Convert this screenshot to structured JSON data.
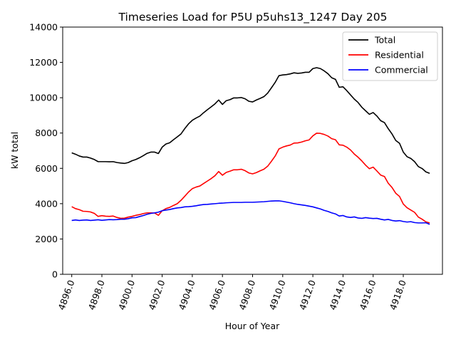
{
  "chart_data": {
    "type": "line",
    "title": "Timeseries Load for P5U p5uhs13_1247  Day 205",
    "xlabel": "Hour of Year",
    "ylabel": "kW total",
    "xlim": [
      4895.4,
      4920.6
    ],
    "ylim": [
      0,
      14000
    ],
    "xticks": [
      4896,
      4898,
      4900,
      4902,
      4904,
      4906,
      4908,
      4910,
      4912,
      4914,
      4916,
      4918
    ],
    "xtick_labels": [
      "4896.0",
      "4898.0",
      "4900.0",
      "4902.0",
      "4904.0",
      "4906.0",
      "4908.0",
      "4910.0",
      "4912.0",
      "4914.0",
      "4916.0",
      "4918.0"
    ],
    "yticks": [
      0,
      2000,
      4000,
      6000,
      8000,
      10000,
      12000,
      14000
    ],
    "ytick_labels": [
      "0",
      "2000",
      "4000",
      "6000",
      "8000",
      "10000",
      "12000",
      "14000"
    ],
    "legend_position": "top-right",
    "grid": false,
    "x": [
      4896.0,
      4896.25,
      4896.5,
      4896.75,
      4897.0,
      4897.25,
      4897.5,
      4897.75,
      4898.0,
      4898.25,
      4898.5,
      4898.75,
      4899.0,
      4899.25,
      4899.5,
      4899.75,
      4900.0,
      4900.25,
      4900.5,
      4900.75,
      4901.0,
      4901.25,
      4901.5,
      4901.75,
      4902.0,
      4902.25,
      4902.5,
      4902.75,
      4903.0,
      4903.25,
      4903.5,
      4903.75,
      4904.0,
      4904.25,
      4904.5,
      4904.75,
      4905.0,
      4905.25,
      4905.5,
      4905.75,
      4906.0,
      4906.25,
      4906.5,
      4906.75,
      4907.0,
      4907.25,
      4907.5,
      4907.75,
      4908.0,
      4908.25,
      4908.5,
      4908.75,
      4909.0,
      4909.25,
      4909.5,
      4909.75,
      4910.0,
      4910.25,
      4910.5,
      4910.75,
      4911.0,
      4911.25,
      4911.5,
      4911.75,
      4912.0,
      4912.25,
      4912.5,
      4912.75,
      4913.0,
      4913.25,
      4913.5,
      4913.75,
      4914.0,
      4914.25,
      4914.5,
      4914.75,
      4915.0,
      4915.25,
      4915.5,
      4915.75,
      4916.0,
      4916.25,
      4916.5,
      4916.75,
      4917.0,
      4917.25,
      4917.5,
      4917.75,
      4918.0,
      4918.25,
      4918.5,
      4918.75,
      4919.0,
      4919.25,
      4919.5,
      4919.75
    ],
    "series": [
      {
        "name": "Total",
        "color": "#000000",
        "values": [
          6880,
          6800,
          6700,
          6640,
          6640,
          6580,
          6500,
          6380,
          6380,
          6380,
          6370,
          6380,
          6330,
          6300,
          6280,
          6330,
          6430,
          6500,
          6600,
          6720,
          6850,
          6920,
          6920,
          6840,
          7200,
          7380,
          7450,
          7620,
          7780,
          7950,
          8250,
          8520,
          8720,
          8850,
          8960,
          9150,
          9320,
          9480,
          9650,
          9870,
          9620,
          9830,
          9890,
          9990,
          9990,
          10010,
          9940,
          9800,
          9760,
          9870,
          9960,
          10060,
          10260,
          10560,
          10870,
          11250,
          11290,
          11310,
          11350,
          11410,
          11380,
          11400,
          11440,
          11440,
          11650,
          11700,
          11650,
          11520,
          11360,
          11130,
          11040,
          10590,
          10620,
          10400,
          10160,
          9920,
          9730,
          9460,
          9260,
          9060,
          9160,
          8960,
          8700,
          8590,
          8250,
          7950,
          7580,
          7420,
          6920,
          6660,
          6560,
          6380,
          6100,
          5990,
          5800,
          5720
        ]
      },
      {
        "name": "Residential",
        "color": "#ff0000",
        "values": [
          3830,
          3720,
          3660,
          3570,
          3560,
          3530,
          3450,
          3280,
          3320,
          3290,
          3280,
          3300,
          3220,
          3170,
          3180,
          3240,
          3280,
          3340,
          3380,
          3440,
          3480,
          3480,
          3470,
          3340,
          3600,
          3720,
          3790,
          3900,
          4000,
          4190,
          4420,
          4660,
          4850,
          4940,
          5000,
          5140,
          5280,
          5420,
          5580,
          5820,
          5610,
          5770,
          5840,
          5920,
          5920,
          5950,
          5870,
          5740,
          5690,
          5760,
          5860,
          5950,
          6120,
          6400,
          6700,
          7100,
          7200,
          7270,
          7320,
          7430,
          7440,
          7490,
          7560,
          7610,
          7840,
          7990,
          7980,
          7920,
          7830,
          7680,
          7620,
          7330,
          7310,
          7200,
          7040,
          6810,
          6630,
          6420,
          6180,
          5980,
          6070,
          5850,
          5620,
          5540,
          5160,
          4920,
          4590,
          4410,
          3980,
          3770,
          3640,
          3510,
          3240,
          3120,
          2970,
          2910
        ]
      },
      {
        "name": "Commercial",
        "color": "#0000ff",
        "values": [
          3050,
          3080,
          3050,
          3070,
          3080,
          3050,
          3070,
          3090,
          3060,
          3080,
          3100,
          3090,
          3100,
          3120,
          3120,
          3150,
          3200,
          3210,
          3270,
          3330,
          3400,
          3450,
          3480,
          3520,
          3600,
          3640,
          3670,
          3720,
          3760,
          3780,
          3820,
          3830,
          3850,
          3880,
          3920,
          3950,
          3960,
          3980,
          4000,
          4020,
          4030,
          4050,
          4060,
          4070,
          4070,
          4070,
          4080,
          4080,
          4080,
          4090,
          4100,
          4110,
          4130,
          4150,
          4160,
          4160,
          4130,
          4090,
          4050,
          4000,
          3960,
          3930,
          3900,
          3860,
          3820,
          3760,
          3700,
          3620,
          3560,
          3480,
          3420,
          3300,
          3330,
          3250,
          3220,
          3250,
          3190,
          3170,
          3210,
          3180,
          3160,
          3170,
          3120,
          3080,
          3110,
          3050,
          3020,
          3040,
          2990,
          2960,
          2980,
          2930,
          2910,
          2910,
          2920,
          2830
        ]
      }
    ]
  }
}
